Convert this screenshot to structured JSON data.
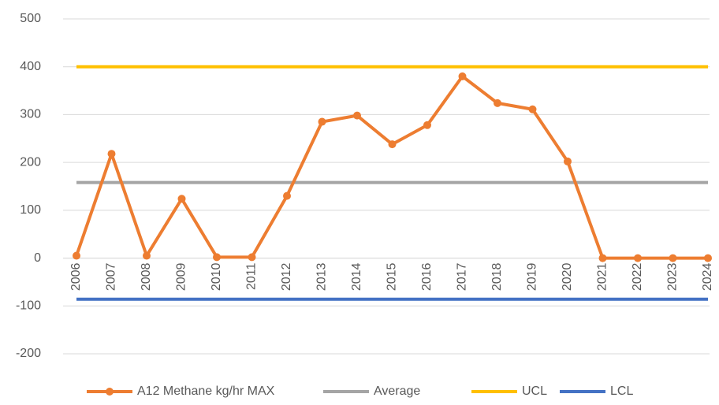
{
  "chart_data": {
    "type": "line",
    "categories": [
      "2006",
      "2007",
      "2008",
      "2009",
      "2010",
      "2011",
      "2012",
      "2013",
      "2014",
      "2015",
      "2016",
      "2017",
      "2018",
      "2019",
      "2020",
      "2021",
      "2022",
      "2023",
      "2024"
    ],
    "series": [
      {
        "name": "A12 Methane kg/hr MAX",
        "color": "#ED7D31",
        "marker": true,
        "values": [
          5,
          218,
          5,
          124,
          2,
          2,
          130,
          285,
          298,
          238,
          278,
          380,
          324,
          311,
          202,
          0,
          0,
          0,
          0
        ]
      },
      {
        "name": "Average",
        "color": "#A5A5A5",
        "marker": false,
        "values": [
          158,
          158,
          158,
          158,
          158,
          158,
          158,
          158,
          158,
          158,
          158,
          158,
          158,
          158,
          158,
          158,
          158,
          158,
          158
        ]
      },
      {
        "name": "UCL",
        "color": "#FFC000",
        "marker": false,
        "values": [
          400,
          400,
          400,
          400,
          400,
          400,
          400,
          400,
          400,
          400,
          400,
          400,
          400,
          400,
          400,
          400,
          400,
          400,
          400
        ]
      },
      {
        "name": "LCL",
        "color": "#4472C4",
        "marker": false,
        "values": [
          -86,
          -86,
          -86,
          -86,
          -86,
          -86,
          -86,
          -86,
          -86,
          -86,
          -86,
          -86,
          -86,
          -86,
          -86,
          -86,
          -86,
          -86,
          -86
        ]
      }
    ],
    "ylim": [
      -200,
      500
    ],
    "yticks": [
      -200,
      -100,
      0,
      100,
      200,
      300,
      400,
      500
    ],
    "grid": true,
    "legend": "bottom"
  }
}
